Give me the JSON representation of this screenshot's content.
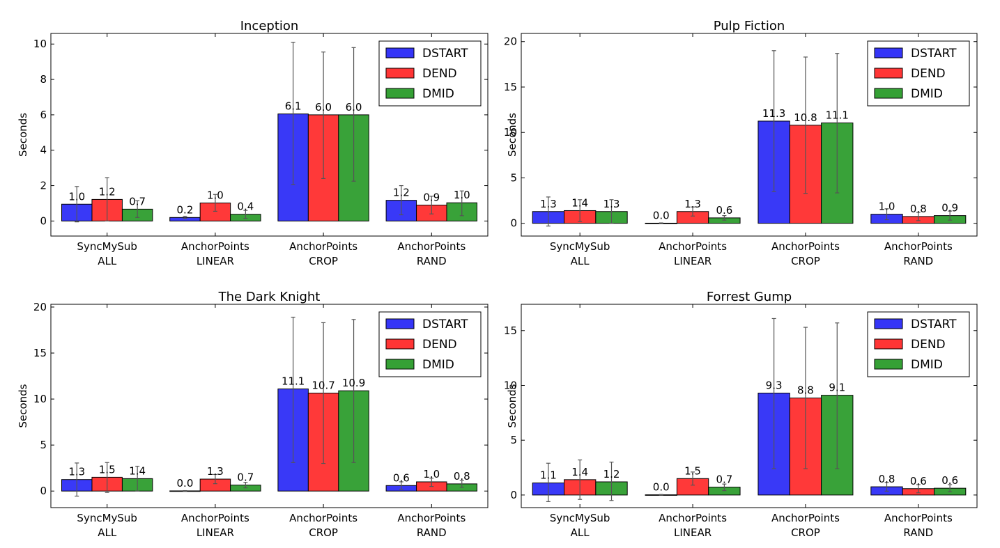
{
  "chart_data": [
    {
      "type": "bar",
      "title": "Inception",
      "ylabel": "Seconds",
      "categories": [
        "SyncMySub\nALL",
        "AnchorPoints\nLINEAR",
        "AnchorPoints\nCROP",
        "AnchorPoints\nRAND"
      ],
      "series": [
        {
          "name": "DSTART",
          "values": [
            0.95,
            0.2,
            6.05,
            1.17
          ],
          "err_low": [
            -0.05,
            0.15,
            2.05,
            0.35
          ],
          "err_high": [
            1.95,
            0.27,
            10.1,
            2.0
          ],
          "labels": [
            "1.0",
            "0.2",
            "6.1",
            "1.2"
          ]
        },
        {
          "name": "DEND",
          "values": [
            1.22,
            1.02,
            6.0,
            0.9
          ],
          "err_low": [
            0.0,
            0.55,
            2.4,
            0.4
          ],
          "err_high": [
            2.45,
            1.5,
            9.55,
            1.4
          ],
          "labels": [
            "1.2",
            "1.0",
            "6.0",
            "0.9"
          ]
        },
        {
          "name": "DMID",
          "values": [
            0.67,
            0.38,
            6.0,
            1.03
          ],
          "err_low": [
            0.2,
            0.15,
            2.25,
            0.3
          ],
          "err_high": [
            1.15,
            0.6,
            9.8,
            1.7
          ],
          "labels": [
            "0.7",
            "0.4",
            "6.0",
            "1.0"
          ]
        }
      ],
      "yticks": [
        0,
        2,
        4,
        6,
        8,
        10
      ],
      "ylim": [
        -0.85,
        10.6
      ],
      "legend": "top-right"
    },
    {
      "type": "bar",
      "title": "Pulp Fiction",
      "ylabel": "Seconds",
      "categories": [
        "SyncMySub\nALL",
        "AnchorPoints\nLINEAR",
        "AnchorPoints\nCROP",
        "AnchorPoints\nRAND"
      ],
      "series": [
        {
          "name": "DSTART",
          "values": [
            1.3,
            0.02,
            11.25,
            1.0
          ],
          "err_low": [
            -0.3,
            0.0,
            3.5,
            0.4
          ],
          "err_high": [
            2.9,
            0.05,
            19.0,
            1.6
          ],
          "labels": [
            "1.3",
            "0.0",
            "11.3",
            "1.0"
          ]
        },
        {
          "name": "DEND",
          "values": [
            1.4,
            1.3,
            10.8,
            0.75
          ],
          "err_low": [
            0.2,
            0.8,
            3.3,
            0.3
          ],
          "err_high": [
            2.6,
            1.8,
            18.3,
            1.2
          ],
          "labels": [
            "1.4",
            "1.3",
            "10.8",
            "0.8"
          ]
        },
        {
          "name": "DMID",
          "values": [
            1.3,
            0.6,
            11.05,
            0.85
          ],
          "err_low": [
            0.0,
            0.35,
            3.35,
            0.35
          ],
          "err_high": [
            2.6,
            0.85,
            18.7,
            1.35
          ],
          "labels": [
            "1.3",
            "0.6",
            "11.1",
            "0.9"
          ]
        }
      ],
      "yticks": [
        0,
        5,
        10,
        15,
        20
      ],
      "ylim": [
        -1.4,
        20.9
      ],
      "legend": "top-right"
    },
    {
      "type": "bar",
      "title": "The Dark Knight",
      "ylabel": "Seconds",
      "categories": [
        "SyncMySub\nALL",
        "AnchorPoints\nLINEAR",
        "AnchorPoints\nCROP",
        "AnchorPoints\nRAND"
      ],
      "series": [
        {
          "name": "DSTART",
          "values": [
            1.25,
            0.02,
            11.1,
            0.6
          ],
          "err_low": [
            -0.55,
            0.0,
            3.1,
            0.2
          ],
          "err_high": [
            3.05,
            0.05,
            18.9,
            1.0
          ],
          "labels": [
            "1.3",
            "0.0",
            "11.1",
            "0.6"
          ]
        },
        {
          "name": "DEND",
          "values": [
            1.5,
            1.3,
            10.65,
            1.0
          ],
          "err_low": [
            -0.15,
            0.8,
            3.0,
            0.5
          ],
          "err_high": [
            3.1,
            1.8,
            18.3,
            1.4
          ],
          "labels": [
            "1.5",
            "1.3",
            "10.7",
            "1.0"
          ]
        },
        {
          "name": "DMID",
          "values": [
            1.35,
            0.65,
            10.9,
            0.78
          ],
          "err_low": [
            0.0,
            0.35,
            3.1,
            0.4
          ],
          "err_high": [
            2.7,
            0.95,
            18.65,
            1.15
          ],
          "labels": [
            "1.4",
            "0.7",
            "10.9",
            "0.8"
          ]
        }
      ],
      "yticks": [
        0,
        5,
        10,
        15,
        20
      ],
      "ylim": [
        -1.8,
        20.3
      ],
      "legend": "top-right"
    },
    {
      "type": "bar",
      "title": "Forrest Gump",
      "ylabel": "Seconds",
      "categories": [
        "SyncMySub\nALL",
        "AnchorPoints\nLINEAR",
        "AnchorPoints\nCROP",
        "AnchorPoints\nRAND"
      ],
      "series": [
        {
          "name": "DSTART",
          "values": [
            1.1,
            0.02,
            9.3,
            0.75
          ],
          "err_low": [
            -0.6,
            0.0,
            2.4,
            0.35
          ],
          "err_high": [
            2.9,
            0.05,
            16.1,
            1.15
          ],
          "labels": [
            "1.1",
            "0.0",
            "9.3",
            "0.8"
          ]
        },
        {
          "name": "DEND",
          "values": [
            1.4,
            1.5,
            8.85,
            0.58
          ],
          "err_low": [
            -0.4,
            0.9,
            2.4,
            0.2
          ],
          "err_high": [
            3.2,
            2.1,
            15.3,
            0.95
          ],
          "labels": [
            "1.4",
            "1.5",
            "8.8",
            "0.6"
          ]
        },
        {
          "name": "DMID",
          "values": [
            1.2,
            0.72,
            9.1,
            0.62
          ],
          "err_low": [
            -0.5,
            0.4,
            2.4,
            0.3
          ],
          "err_high": [
            3.0,
            1.0,
            15.7,
            0.95
          ],
          "labels": [
            "1.2",
            "0.7",
            "9.1",
            "0.6"
          ]
        }
      ],
      "yticks": [
        0,
        5,
        10,
        15
      ],
      "ylim": [
        -1.15,
        17.4
      ],
      "legend": "top-right"
    }
  ],
  "colors": {
    "DSTART": "#3535f7",
    "DEND": "#ff3535",
    "DMID": "#35a035",
    "errorbar": "#555555"
  }
}
